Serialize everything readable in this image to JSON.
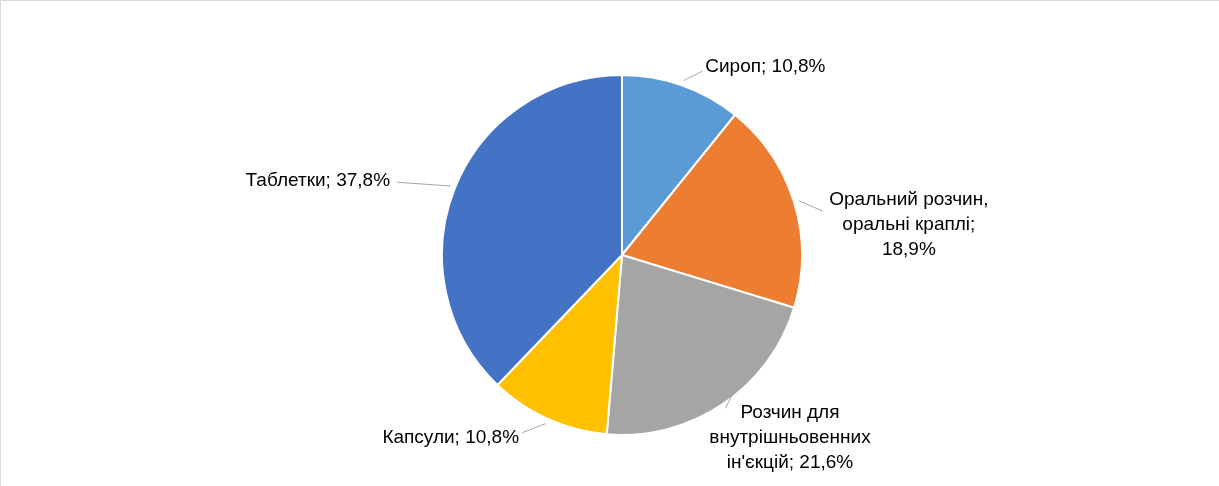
{
  "chart_data": {
    "type": "pie",
    "categories": [
      "Сироп; 10,8%",
      "Оральний розчин, оральні краплі; 18,9%",
      "Розчин для внутрішньовенних ін'єкцій; 21,6%",
      "Капсули; 10,8%",
      "Таблетки; 37,8%"
    ],
    "values": [
      10.8,
      18.9,
      21.6,
      10.8,
      37.8
    ],
    "colors": [
      "#5b9bd5",
      "#ed7d31",
      "#a5a5a5",
      "#ffc000",
      "#4472c4"
    ]
  }
}
